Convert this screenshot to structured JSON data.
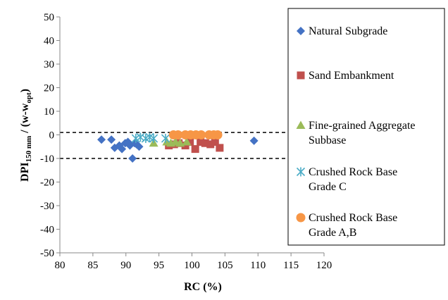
{
  "chart_data": {
    "type": "scatter",
    "title": "",
    "xlabel": "RC (%)",
    "ylabel": {
      "main": "DPI",
      "sub": "150 mm",
      "suffix": " / (w-w",
      "suffix_sub": "opt",
      "suffix_end": ")"
    },
    "xlim": [
      80,
      120
    ],
    "ylim": [
      -50,
      50
    ],
    "x_ticks": [
      "80",
      "85",
      "90",
      "95",
      "100",
      "105",
      "110",
      "115",
      "120"
    ],
    "y_ticks": [
      "50",
      "40",
      "30",
      "20",
      "10",
      "0",
      "-10",
      "-20",
      "-30",
      "-40",
      "-50"
    ],
    "grid": false,
    "legend_position": "right",
    "band": {
      "upper": 1,
      "lower": -10
    },
    "series": [
      {
        "name": "Natural Subgrade",
        "marker": "diamond",
        "color": "#4472C4",
        "x": [
          86.3,
          87.8,
          88.3,
          89.0,
          89.4,
          89.9,
          90.3,
          90.6,
          91.0,
          91.3,
          91.6,
          92.0,
          109.4
        ],
        "y": [
          -2,
          -2,
          -5.5,
          -4.5,
          -6,
          -3.5,
          -3,
          -4.5,
          -10,
          -3.5,
          -4,
          -5,
          -2.5
        ]
      },
      {
        "name": "Sand Embankment",
        "marker": "square",
        "color": "#C0504D",
        "x": [
          96.5,
          97.3,
          98.0,
          99.0,
          99.7,
          100.5,
          101.3,
          102.0,
          102.8,
          103.5,
          104.2
        ],
        "y": [
          -4.5,
          -4,
          -3.5,
          -4.5,
          -3,
          -6,
          -3,
          -3.5,
          -4,
          -3,
          -5.5
        ]
      },
      {
        "name": "Fine-grained Aggregate Subbase",
        "name_lines": [
          "Fine-grained Aggregate",
          "Subbase"
        ],
        "marker": "triangle",
        "color": "#9BBB59",
        "x": [
          94.2,
          96.2,
          96.8,
          97.5,
          98.2,
          99.2
        ],
        "y": [
          -3.5,
          -3,
          -3.5,
          -3,
          -3.5,
          -3
        ]
      },
      {
        "name": "Crushed Rock Base Grade C",
        "name_lines": [
          "Crushed Rock Base",
          "Grade C"
        ],
        "marker": "star",
        "color": "#4BACC6",
        "x": [
          91.5,
          92.2,
          93.0,
          93.6,
          94.2,
          96.0
        ],
        "y": [
          -1.5,
          -1,
          -1.5,
          -1,
          -1.5,
          -1.5
        ]
      },
      {
        "name": "Crushed Rock Base Grade A,B",
        "name_lines": [
          "Crushed Rock Base",
          "Grade A,B"
        ],
        "marker": "circle",
        "color": "#F79646",
        "x": [
          97.2,
          97.9,
          99.0,
          99.8,
          100.6,
          101.4,
          102.6,
          103.3,
          103.9
        ],
        "y": [
          0,
          0,
          0,
          0,
          0,
          0,
          0,
          0,
          0
        ]
      }
    ]
  }
}
